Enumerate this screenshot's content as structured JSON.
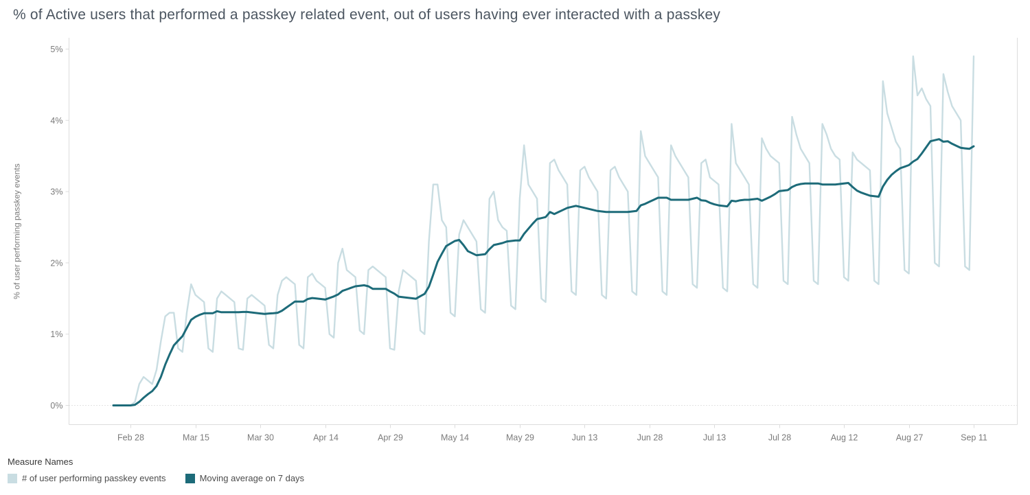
{
  "legend": {
    "title": "Measure Names"
  },
  "chart_data": {
    "type": "line",
    "title": "% of Active users that performed a passkey related event, out of users having ever interacted with a passkey",
    "xlabel": "",
    "ylabel": "% of user performing passkey events",
    "ylim": [
      0,
      5
    ],
    "y_unit": "percent",
    "y_ticks": [
      "0%",
      "1%",
      "2%",
      "3%",
      "4%",
      "5%"
    ],
    "x_ticks": [
      "Feb 28",
      "Mar 15",
      "Mar 30",
      "Apr 14",
      "Apr 29",
      "May 14",
      "May 29",
      "Jun 13",
      "Jun 28",
      "Jul 13",
      "Jul 28",
      "Aug 12",
      "Aug 27",
      "Sep 11"
    ],
    "grid": "none, dotted baseline at 0% only",
    "legend_position": "bottom-left",
    "dates": [
      "Feb 24",
      "Feb 25",
      "Feb 26",
      "Feb 27",
      "Feb 28",
      "Mar 1",
      "Mar 2",
      "Mar 3",
      "Mar 4",
      "Mar 5",
      "Mar 6",
      "Mar 7",
      "Mar 8",
      "Mar 9",
      "Mar 10",
      "Mar 11",
      "Mar 12",
      "Mar 13",
      "Mar 14",
      "Mar 15",
      "Mar 16",
      "Mar 17",
      "Mar 18",
      "Mar 19",
      "Mar 20",
      "Mar 21",
      "Mar 22",
      "Mar 23",
      "Mar 24",
      "Mar 25",
      "Mar 26",
      "Mar 27",
      "Mar 28",
      "Mar 29",
      "Mar 30",
      "Mar 31",
      "Apr 1",
      "Apr 2",
      "Apr 3",
      "Apr 4",
      "Apr 5",
      "Apr 6",
      "Apr 7",
      "Apr 8",
      "Apr 9",
      "Apr 10",
      "Apr 11",
      "Apr 12",
      "Apr 13",
      "Apr 14",
      "Apr 15",
      "Apr 16",
      "Apr 17",
      "Apr 18",
      "Apr 19",
      "Apr 20",
      "Apr 21",
      "Apr 22",
      "Apr 23",
      "Apr 24",
      "Apr 25",
      "Apr 26",
      "Apr 27",
      "Apr 28",
      "Apr 29",
      "Apr 30",
      "May 1",
      "May 2",
      "May 3",
      "May 4",
      "May 5",
      "May 6",
      "May 7",
      "May 8",
      "May 9",
      "May 10",
      "May 11",
      "May 12",
      "May 13",
      "May 14",
      "May 15",
      "May 16",
      "May 17",
      "May 18",
      "May 19",
      "May 20",
      "May 21",
      "May 22",
      "May 23",
      "May 24",
      "May 25",
      "May 26",
      "May 27",
      "May 28",
      "May 29",
      "May 30",
      "May 31",
      "Jun 1",
      "Jun 2",
      "Jun 3",
      "Jun 4",
      "Jun 5",
      "Jun 6",
      "Jun 7",
      "Jun 8",
      "Jun 9",
      "Jun 10",
      "Jun 11",
      "Jun 12",
      "Jun 13",
      "Jun 14",
      "Jun 15",
      "Jun 16",
      "Jun 17",
      "Jun 18",
      "Jun 19",
      "Jun 20",
      "Jun 21",
      "Jun 22",
      "Jun 23",
      "Jun 24",
      "Jun 25",
      "Jun 26",
      "Jun 27",
      "Jun 28",
      "Jun 29",
      "Jun 30",
      "Jul 1",
      "Jul 2",
      "Jul 3",
      "Jul 4",
      "Jul 5",
      "Jul 6",
      "Jul 7",
      "Jul 8",
      "Jul 9",
      "Jul 10",
      "Jul 11",
      "Jul 12",
      "Jul 13",
      "Jul 14",
      "Jul 15",
      "Jul 16",
      "Jul 17",
      "Jul 18",
      "Jul 19",
      "Jul 20",
      "Jul 21",
      "Jul 22",
      "Jul 23",
      "Jul 24",
      "Jul 25",
      "Jul 26",
      "Jul 27",
      "Jul 28",
      "Jul 29",
      "Jul 30",
      "Jul 31",
      "Aug 1",
      "Aug 2",
      "Aug 3",
      "Aug 4",
      "Aug 5",
      "Aug 6",
      "Aug 7",
      "Aug 8",
      "Aug 9",
      "Aug 10",
      "Aug 11",
      "Aug 12",
      "Aug 13",
      "Aug 14",
      "Aug 15",
      "Aug 16",
      "Aug 17",
      "Aug 18",
      "Aug 19",
      "Aug 20",
      "Aug 21",
      "Aug 22",
      "Aug 23",
      "Aug 24",
      "Aug 25",
      "Aug 26",
      "Aug 27",
      "Aug 28",
      "Aug 29",
      "Aug 30",
      "Aug 31",
      "Sep 1",
      "Sep 2",
      "Sep 3",
      "Sep 4",
      "Sep 5",
      "Sep 6",
      "Sep 7",
      "Sep 8",
      "Sep 9",
      "Sep 10",
      "Sep 11"
    ],
    "series": [
      {
        "name": "# of user performing passkey events",
        "color": "#c9dde2",
        "values": [
          0,
          0,
          0,
          0,
          0,
          0.05,
          0.3,
          0.4,
          0.35,
          0.3,
          0.5,
          0.9,
          1.25,
          1.3,
          1.3,
          0.8,
          0.75,
          1.3,
          1.7,
          1.55,
          1.5,
          1.45,
          0.8,
          0.75,
          1.5,
          1.6,
          1.55,
          1.5,
          1.45,
          0.8,
          0.78,
          1.5,
          1.55,
          1.5,
          1.45,
          1.4,
          0.85,
          0.8,
          1.55,
          1.75,
          1.8,
          1.75,
          1.7,
          0.85,
          0.8,
          1.8,
          1.85,
          1.75,
          1.7,
          1.65,
          1.0,
          0.95,
          2.0,
          2.2,
          1.9,
          1.85,
          1.8,
          1.05,
          1.0,
          1.9,
          1.95,
          1.9,
          1.85,
          1.8,
          0.8,
          0.78,
          1.6,
          1.9,
          1.85,
          1.8,
          1.75,
          1.05,
          1.0,
          2.3,
          3.1,
          3.1,
          2.6,
          2.5,
          1.3,
          1.25,
          2.4,
          2.6,
          2.5,
          2.4,
          2.3,
          1.35,
          1.3,
          2.9,
          3.0,
          2.6,
          2.5,
          2.45,
          1.4,
          1.35,
          2.9,
          3.65,
          3.1,
          3.0,
          2.9,
          1.5,
          1.45,
          3.4,
          3.45,
          3.3,
          3.2,
          3.1,
          1.6,
          1.55,
          3.3,
          3.35,
          3.2,
          3.1,
          3.0,
          1.55,
          1.5,
          3.3,
          3.35,
          3.2,
          3.1,
          3.0,
          1.6,
          1.55,
          3.85,
          3.5,
          3.4,
          3.3,
          3.2,
          1.6,
          1.55,
          3.65,
          3.5,
          3.4,
          3.3,
          3.2,
          1.7,
          1.65,
          3.4,
          3.45,
          3.2,
          3.15,
          3.1,
          1.65,
          1.6,
          3.95,
          3.4,
          3.3,
          3.2,
          3.1,
          1.7,
          1.65,
          3.75,
          3.6,
          3.5,
          3.45,
          3.4,
          1.75,
          1.7,
          4.05,
          3.8,
          3.6,
          3.5,
          3.4,
          1.75,
          1.7,
          3.95,
          3.8,
          3.6,
          3.5,
          3.45,
          1.8,
          1.75,
          3.55,
          3.45,
          3.4,
          3.35,
          3.3,
          1.75,
          1.7,
          4.55,
          4.1,
          3.9,
          3.7,
          3.6,
          1.9,
          1.85,
          4.9,
          4.35,
          4.45,
          4.3,
          4.2,
          2.0,
          1.95,
          4.65,
          4.4,
          4.2,
          4.1,
          4.0,
          1.95,
          1.9,
          4.9
        ]
      },
      {
        "name": "Moving average on 7 days",
        "color": "#1d6b79",
        "derived": "trailing 7-day moving average of first series",
        "window": 7
      }
    ]
  }
}
